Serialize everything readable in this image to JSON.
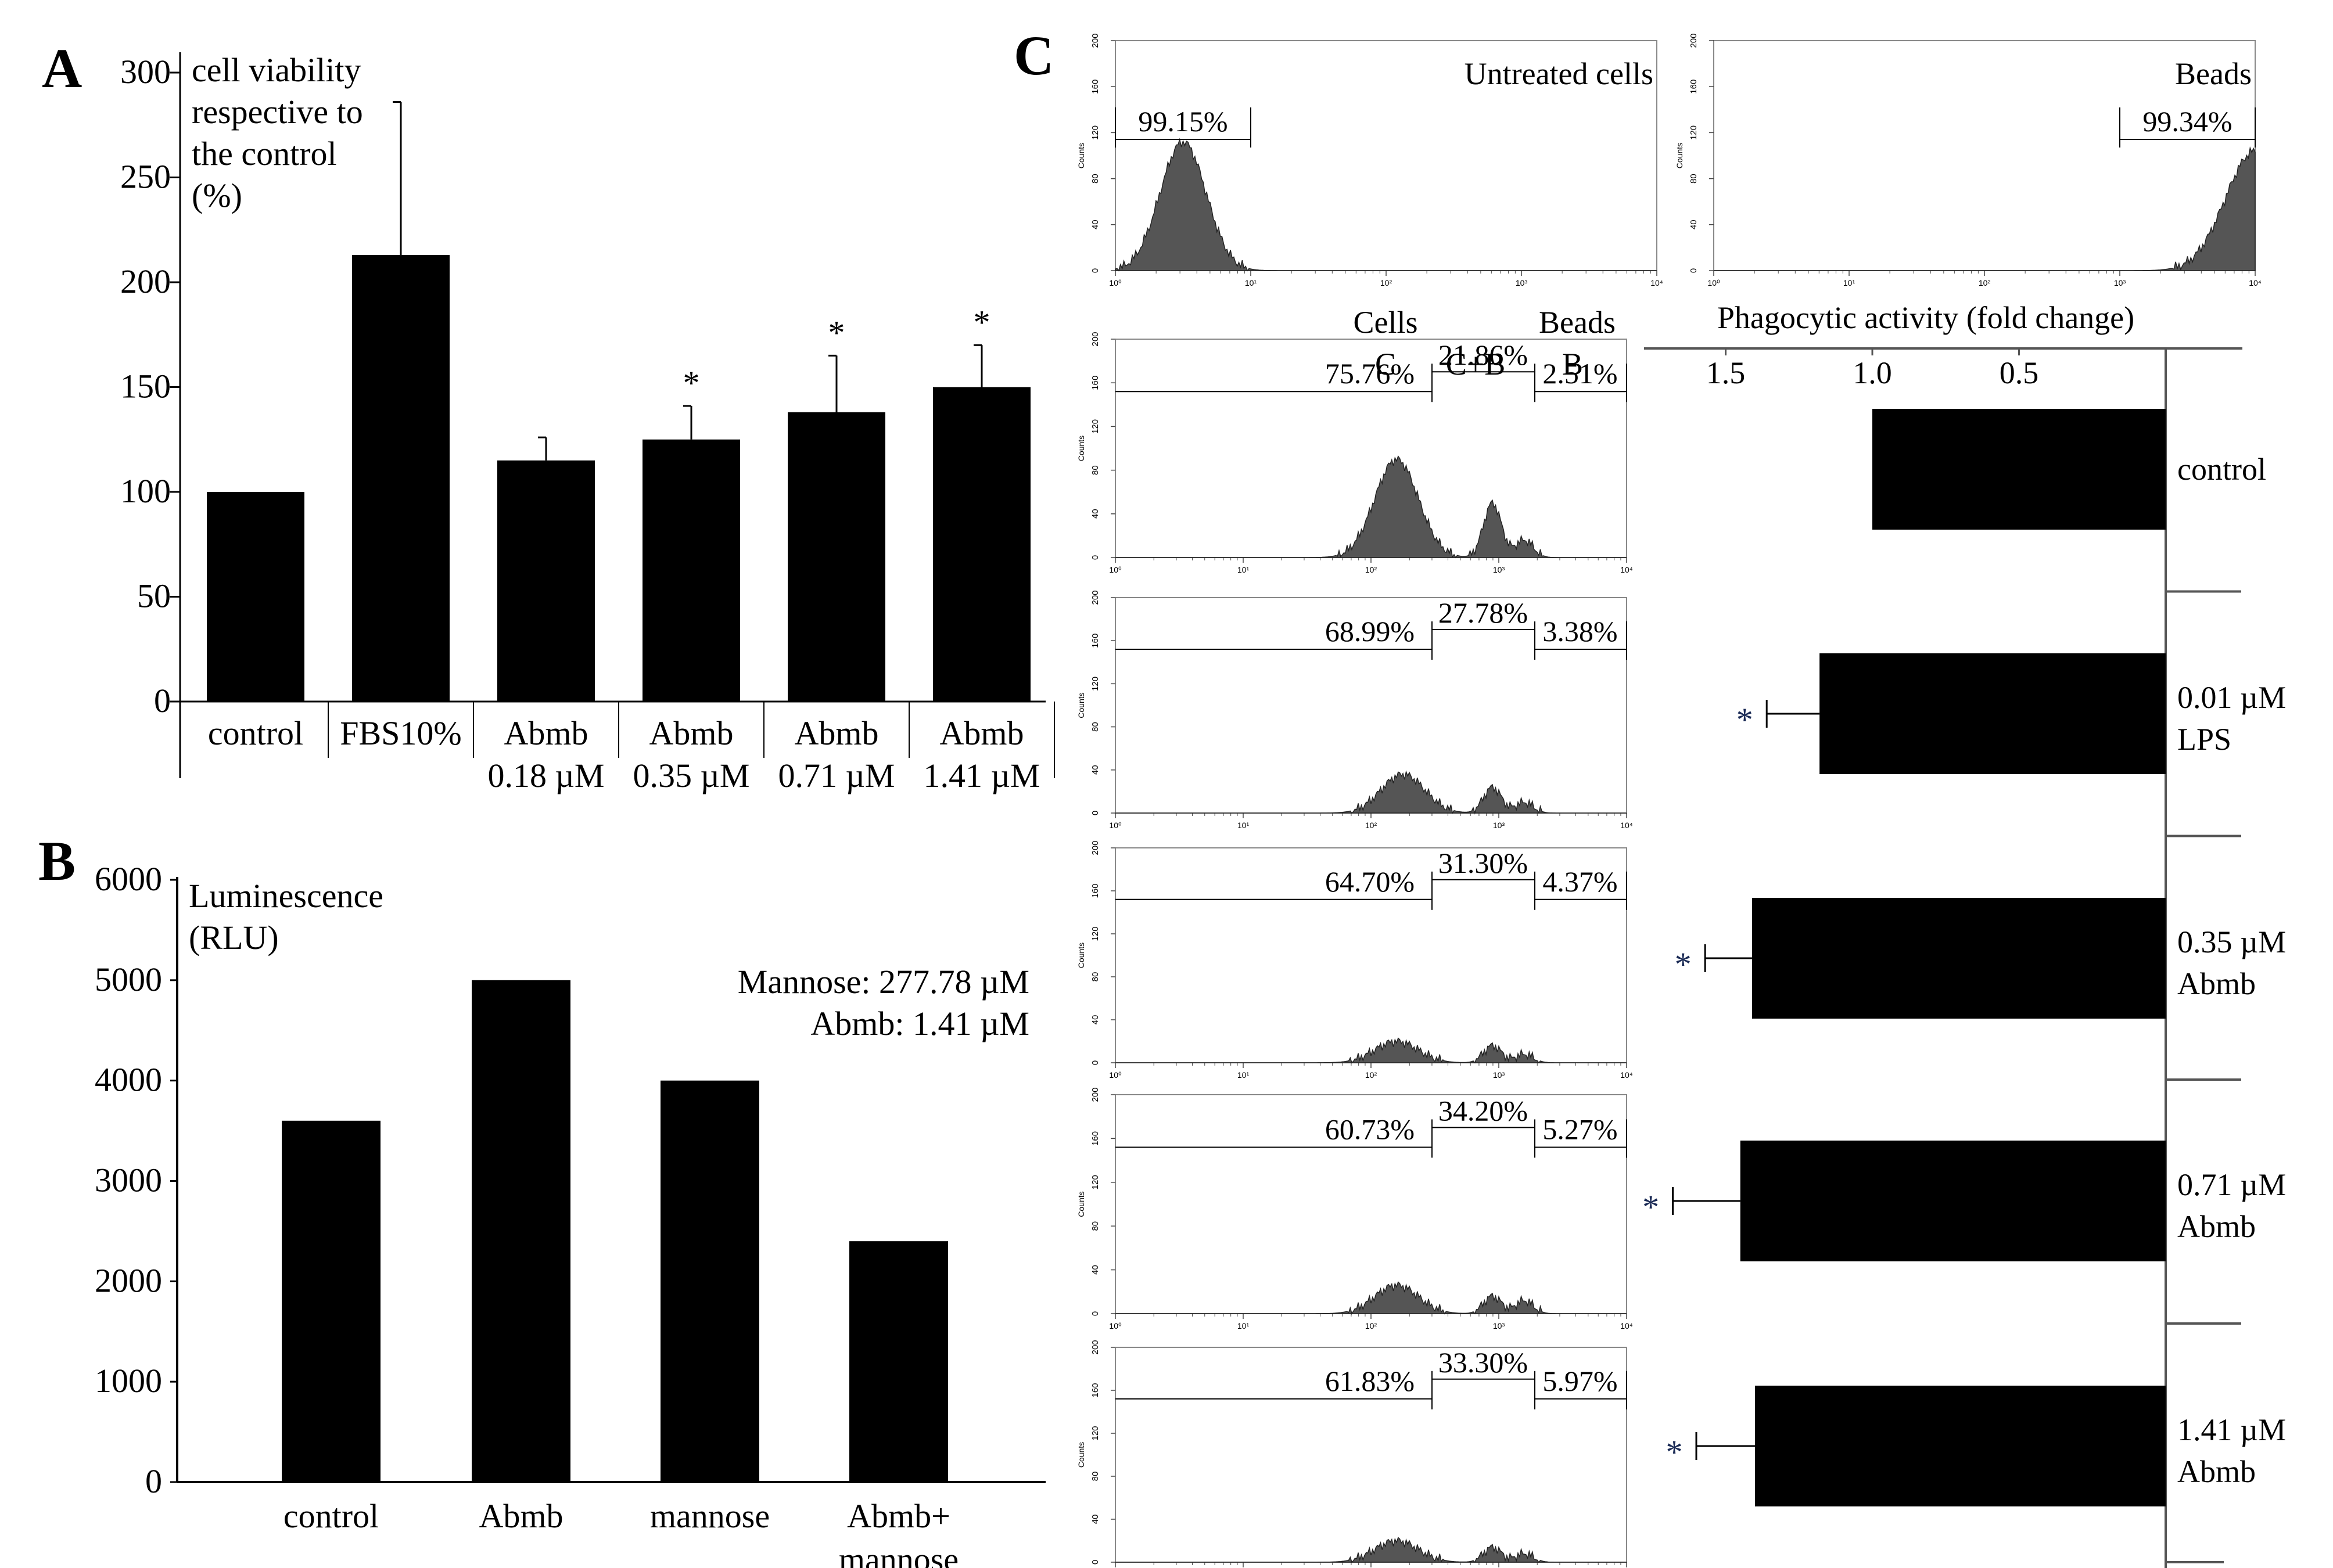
{
  "panels": {
    "a": "A",
    "b": "B",
    "c": "C"
  },
  "colors": {
    "bar": "#000000",
    "histogram": "#555555",
    "axis": "#000000"
  },
  "chart_data": [
    {
      "id": "A",
      "type": "bar",
      "ylabel_lines": [
        "cell viability",
        "respective to",
        "the control",
        "(%)"
      ],
      "categories": [
        {
          "line1": "control",
          "line2": ""
        },
        {
          "line1": "FBS10%",
          "line2": ""
        },
        {
          "line1": "Abmb",
          "line2": "0.18 µM"
        },
        {
          "line1": "Abmb",
          "line2": "0.35 µM"
        },
        {
          "line1": "Abmb",
          "line2": "0.71 µM"
        },
        {
          "line1": "Abmb",
          "line2": "1.41 µM"
        }
      ],
      "values": [
        100,
        213,
        115,
        125,
        138,
        150
      ],
      "errors": [
        0,
        73,
        11,
        16,
        27,
        20
      ],
      "significance": [
        "",
        "",
        "",
        "*",
        "*",
        "*"
      ],
      "yticks": [
        "0",
        "50",
        "100",
        "150",
        "200",
        "250",
        "300"
      ],
      "ylim": [
        0,
        300
      ]
    },
    {
      "id": "B",
      "type": "bar",
      "ylabel_lines": [
        "Luminescence",
        "(RLU)"
      ],
      "annotation_lines": [
        "Mannose: 277.78 µM",
        "Abmb: 1.41 µM"
      ],
      "categories": [
        {
          "line1": "control",
          "line2": ""
        },
        {
          "line1": "Abmb",
          "line2": ""
        },
        {
          "line1": "mannose",
          "line2": ""
        },
        {
          "line1": "Abmb+",
          "line2": "mannose"
        }
      ],
      "values": [
        3600,
        5000,
        4000,
        2400
      ],
      "yticks": [
        "0",
        "1000",
        "2000",
        "3000",
        "4000",
        "5000",
        "6000"
      ],
      "ylim": [
        0,
        6000
      ]
    },
    {
      "id": "C-hist",
      "type": "histogram",
      "x_scale": "log",
      "xlim": [
        1,
        10000
      ],
      "yticks": [
        "0",
        "40",
        "80",
        "120",
        "160",
        "200"
      ],
      "ylabel": "Counts",
      "xticks": [
        "10⁰",
        "10¹",
        "10²",
        "10³",
        "10⁴"
      ],
      "top_panels": [
        {
          "title": "Untreated cells",
          "gate_pct": "99.15%",
          "gate": [
            1,
            10
          ],
          "peaks": [
            {
              "logx": 0.5,
              "h": 0.56
            }
          ]
        },
        {
          "title": "Beads",
          "gate_pct": "99.34%",
          "gate": [
            1000,
            10000
          ],
          "peaks": [
            {
              "logx": 4.0,
              "h": 0.52
            }
          ]
        }
      ],
      "gate_headers": {
        "cells": "Cells",
        "beads": "Beads",
        "c": "C",
        "cb": "C+B",
        "b": "B"
      },
      "rows": [
        {
          "c": "75.76%",
          "cb": "21.86%",
          "b": "2.51%",
          "peaks": [
            {
              "logx": 2.2,
              "h": 0.45
            },
            {
              "logx": 2.95,
              "h": 0.25
            },
            {
              "logx": 3.2,
              "h": 0.08
            }
          ]
        },
        {
          "c": "68.99%",
          "cb": "27.78%",
          "b": "3.38%",
          "peaks": [
            {
              "logx": 2.25,
              "h": 0.18
            },
            {
              "logx": 2.95,
              "h": 0.12
            },
            {
              "logx": 3.2,
              "h": 0.05
            }
          ]
        },
        {
          "c": "64.70%",
          "cb": "31.30%",
          "b": "4.37%",
          "peaks": [
            {
              "logx": 2.2,
              "h": 0.1
            },
            {
              "logx": 2.95,
              "h": 0.08
            },
            {
              "logx": 3.2,
              "h": 0.04
            }
          ]
        },
        {
          "c": "60.73%",
          "cb": "34.20%",
          "b": "5.27%",
          "peaks": [
            {
              "logx": 2.2,
              "h": 0.13
            },
            {
              "logx": 2.95,
              "h": 0.08
            },
            {
              "logx": 3.2,
              "h": 0.06
            }
          ]
        },
        {
          "c": "61.83%",
          "cb": "33.30%",
          "b": "5.97%",
          "peaks": [
            {
              "logx": 2.2,
              "h": 0.1
            },
            {
              "logx": 2.95,
              "h": 0.07
            },
            {
              "logx": 3.2,
              "h": 0.04
            }
          ]
        }
      ]
    },
    {
      "id": "C-bars",
      "type": "bar",
      "orientation": "horizontal",
      "title": "Phagocytic activity (fold change)",
      "xticks": [
        "1.5",
        "1.0",
        "0.5"
      ],
      "xlim": [
        0,
        1.75
      ],
      "categories": [
        {
          "line1": "control",
          "line2": ""
        },
        {
          "line1": "0.01 µM",
          "line2": "LPS"
        },
        {
          "line1": "0.35 µM",
          "line2": "Abmb"
        },
        {
          "line1": "0.71 µM",
          "line2": "Abmb"
        },
        {
          "line1": "1.41 µM",
          "line2": "Abmb"
        }
      ],
      "values": [
        1.0,
        1.18,
        1.41,
        1.45,
        1.4
      ],
      "errors": [
        0,
        0.18,
        0.16,
        0.23,
        0.2
      ],
      "significance": [
        "",
        "*",
        "*",
        "*",
        "*"
      ]
    }
  ]
}
